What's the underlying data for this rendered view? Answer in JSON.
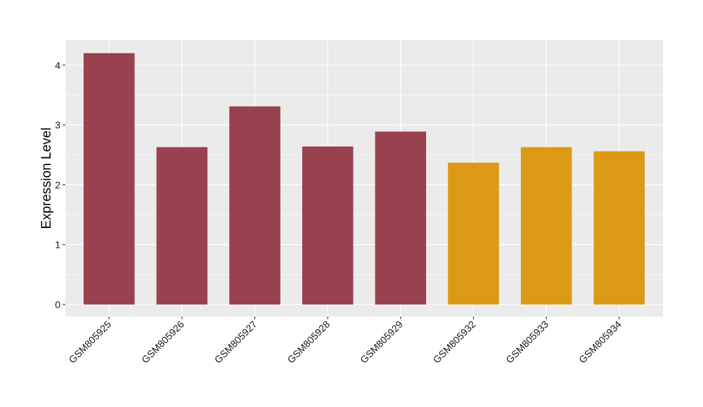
{
  "chart_data": {
    "type": "bar",
    "title": "",
    "xlabel": "",
    "ylabel": "Expression Level",
    "categories": [
      "GSM805925",
      "GSM805926",
      "GSM805927",
      "GSM805928",
      "GSM805929",
      "GSM805932",
      "GSM805933",
      "GSM805934"
    ],
    "values": [
      4.2,
      2.63,
      3.31,
      2.64,
      2.89,
      2.37,
      2.63,
      2.56
    ],
    "bar_colors": [
      "#98414F",
      "#98414F",
      "#98414F",
      "#98414F",
      "#98414F",
      "#DC9915",
      "#DC9915",
      "#DC9915"
    ],
    "ylim": [
      -0.2,
      4.42
    ],
    "yticks": [
      0,
      1,
      2,
      3,
      4
    ],
    "grid": true,
    "legend": "none",
    "colors": {
      "panel_background": "#EBEBEB",
      "grid_major": "#FFFFFF",
      "tick_color": "#333333"
    }
  }
}
